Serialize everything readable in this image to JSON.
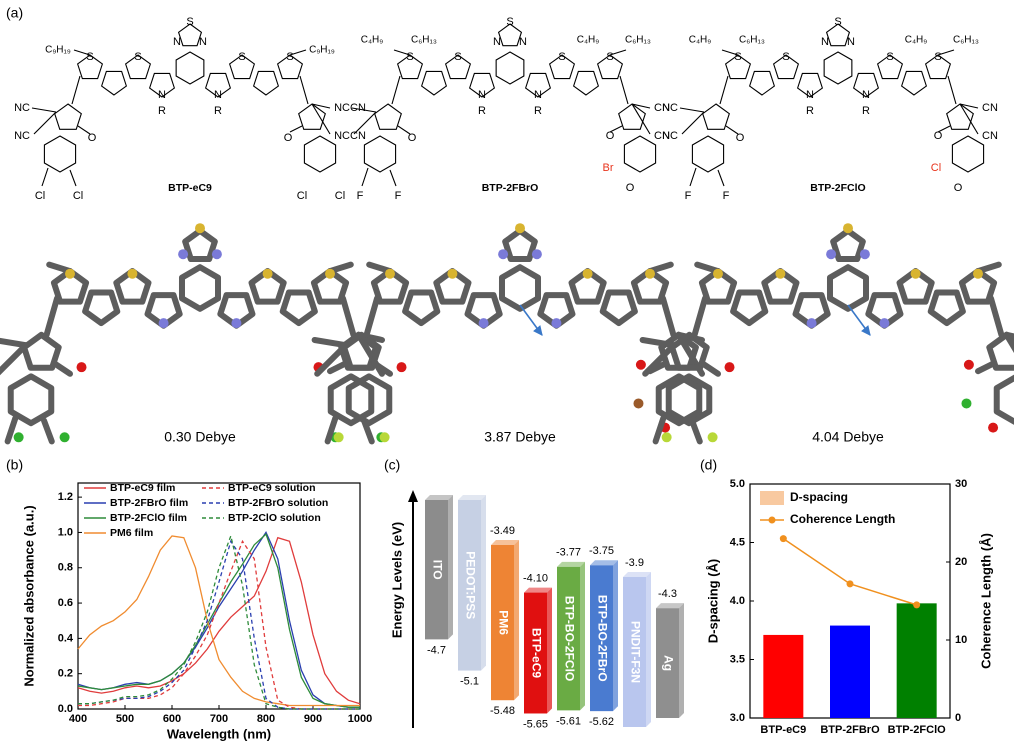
{
  "panel_a": {
    "label": "(a)",
    "molecules": [
      {
        "name": "BTP-eC9",
        "core": [
          "S",
          "N",
          "N",
          "S",
          "S",
          "S",
          "S",
          "N",
          "N",
          "R",
          "R"
        ],
        "side_chains": [
          "C₉H₁₉",
          "C₉H₁₉"
        ],
        "left_end": [
          "NC",
          "NC",
          "O",
          "Cl",
          "Cl"
        ],
        "right_end": [
          "CN",
          "CN",
          "O",
          "Cl",
          "Cl"
        ],
        "dipole": "0.30 Debye"
      },
      {
        "name": "BTP-2FBrO",
        "core": [
          "S",
          "N",
          "N",
          "S",
          "S",
          "S",
          "S",
          "N",
          "N",
          "R",
          "R"
        ],
        "side_chains": [
          "C₄H₉",
          "C₆H₁₃",
          "C₄H₉",
          "C₆H₁₃"
        ],
        "left_end": [
          "NC",
          "NC",
          "O",
          "F",
          "F"
        ],
        "right_end": [
          "CN",
          "CN",
          "O",
          "Br",
          "O"
        ],
        "highlight_color": "#e8341c",
        "dipole": "3.87 Debye"
      },
      {
        "name": "BTP-2FClO",
        "core": [
          "S",
          "N",
          "N",
          "S",
          "S",
          "S",
          "S",
          "N",
          "N",
          "R",
          "R"
        ],
        "side_chains": [
          "C₄H₉",
          "C₆H₁₃",
          "C₄H₉",
          "C₆H₁₃"
        ],
        "left_end": [
          "NC",
          "NC",
          "O",
          "F",
          "F"
        ],
        "right_end": [
          "CN",
          "CN",
          "O",
          "Cl",
          "O"
        ],
        "highlight_color": "#e8341c",
        "dipole": "4.04 Debye"
      }
    ]
  },
  "chart_data": [
    {
      "type": "line",
      "label": "(b)",
      "xlabel": "Wavelength (nm)",
      "ylabel": "Normalized absorbance (a.u.)",
      "x": [
        400,
        425,
        450,
        475,
        500,
        525,
        550,
        575,
        600,
        625,
        650,
        675,
        700,
        725,
        750,
        775,
        800,
        825,
        850,
        875,
        900,
        925,
        950,
        975,
        1000
      ],
      "xlim": [
        400,
        1000
      ],
      "xticks": [
        400,
        500,
        600,
        700,
        800,
        900,
        1000
      ],
      "ylim": [
        0,
        1.28
      ],
      "yticks": [
        {
          "value": 0,
          "label": "0.0"
        },
        0.2,
        0.4,
        0.6,
        0.8,
        {
          "value": 1,
          "label": "1.0"
        },
        1.2
      ],
      "series": [
        {
          "name": "BTP-eC9   film",
          "color": "#e03c3c",
          "dashed": false,
          "values": [
            0.12,
            0.1,
            0.09,
            0.1,
            0.12,
            0.13,
            0.12,
            0.13,
            0.16,
            0.2,
            0.26,
            0.34,
            0.44,
            0.52,
            0.58,
            0.64,
            0.78,
            0.97,
            0.95,
            0.72,
            0.42,
            0.2,
            0.1,
            0.05,
            0.03
          ]
        },
        {
          "name": "BTP-2FBrO film",
          "color": "#2a3fb0",
          "dashed": false,
          "values": [
            0.14,
            0.12,
            0.11,
            0.12,
            0.14,
            0.15,
            0.14,
            0.16,
            0.2,
            0.26,
            0.35,
            0.46,
            0.58,
            0.68,
            0.78,
            0.9,
            1.0,
            0.85,
            0.5,
            0.22,
            0.08,
            0.03,
            0.02,
            0.01,
            0.01
          ]
        },
        {
          "name": "BTP-2FClO film",
          "color": "#2e8b3a",
          "dashed": false,
          "values": [
            0.13,
            0.12,
            0.11,
            0.12,
            0.13,
            0.14,
            0.14,
            0.16,
            0.2,
            0.26,
            0.36,
            0.48,
            0.6,
            0.72,
            0.82,
            0.93,
            0.99,
            0.8,
            0.45,
            0.18,
            0.06,
            0.03,
            0.02,
            0.01,
            0.01
          ]
        },
        {
          "name": "PM6 film",
          "color": "#f08c30",
          "dashed": false,
          "values": [
            0.34,
            0.42,
            0.47,
            0.5,
            0.55,
            0.62,
            0.75,
            0.9,
            0.98,
            0.97,
            0.8,
            0.5,
            0.28,
            0.18,
            0.1,
            0.06,
            0.04,
            0.03,
            0.02,
            0.02,
            0.02,
            0.02,
            0.02,
            0.02,
            0.02
          ]
        },
        {
          "name": "BTP-eC9   solution",
          "color": "#e03c3c",
          "dashed": true,
          "values": [
            0.02,
            0.02,
            0.03,
            0.04,
            0.06,
            0.06,
            0.06,
            0.08,
            0.12,
            0.2,
            0.3,
            0.42,
            0.6,
            0.78,
            0.95,
            0.85,
            0.35,
            0.05,
            0.01,
            0,
            0,
            0,
            0,
            0,
            0
          ]
        },
        {
          "name": "BTP-2FBrO solution",
          "color": "#2a3fb0",
          "dashed": true,
          "values": [
            0.03,
            0.03,
            0.04,
            0.05,
            0.06,
            0.06,
            0.07,
            0.1,
            0.15,
            0.22,
            0.35,
            0.5,
            0.72,
            0.95,
            0.85,
            0.4,
            0.06,
            0.01,
            0,
            0,
            0,
            0,
            0,
            0,
            0
          ]
        },
        {
          "name": "BTP-2ClO solution",
          "color": "#2e8b3a",
          "dashed": true,
          "values": [
            0.03,
            0.03,
            0.04,
            0.05,
            0.07,
            0.07,
            0.08,
            0.11,
            0.17,
            0.25,
            0.38,
            0.55,
            0.8,
            0.98,
            0.7,
            0.25,
            0.03,
            0.01,
            0,
            0,
            0,
            0,
            0,
            0,
            0
          ]
        }
      ]
    },
    {
      "type": "energy_level",
      "label": "(c)",
      "ylabel": "Energy Levels (eV)",
      "categories": [
        "ITO",
        "PEDOT:PSS",
        "PM6",
        "BTP-eC9",
        "BTP-BO-2FClO",
        "BTP-BO-2FBrO",
        "PNDIT-F3N",
        "Ag"
      ],
      "colors": [
        "#8c8c8c",
        "#c6d0e4",
        "#ee8434",
        "#e01010",
        "#6aab44",
        "#4a7bd0",
        "#b9c6ee",
        "#8f8f8f"
      ],
      "series": [
        {
          "values": [
            null,
            null,
            -3.49,
            -4.1,
            -3.77,
            -3.75,
            -3.9,
            -4.3
          ],
          "value_labels": [
            null,
            null,
            "-3.49",
            "-4.10",
            "-3.77",
            "-3.75",
            "-3.9",
            "-4.3"
          ]
        },
        {
          "values": [
            -4.7,
            -5.1,
            -5.48,
            -5.65,
            -5.61,
            -5.62,
            null,
            null
          ]
        }
      ]
    },
    {
      "type": "bar_line",
      "label": "(d)",
      "categories": [
        "BTP-eC9",
        "BTP-2FBrO",
        "BTP-2FClO"
      ],
      "ylabel": "D-spacing (Å)",
      "y2label": "Coherence Length (Å)",
      "ylim": [
        3,
        5
      ],
      "yticks": [
        {
          "value": 3,
          "label": "3.0"
        },
        3.5,
        {
          "value": 4,
          "label": "4.0"
        },
        4.5,
        {
          "value": 5,
          "label": "5.0"
        }
      ],
      "y2lim": [
        0,
        30
      ],
      "y2ticks": [
        0,
        10,
        20,
        30
      ],
      "series": [
        {
          "name": "D-spacing",
          "type": "bar",
          "color": "#f8c9a0",
          "colors": [
            "#ff0000",
            "#0000ff",
            "#008000"
          ],
          "values": [
            3.71,
            3.79,
            3.98
          ]
        },
        {
          "name": "Coherence Length",
          "type": "line",
          "axis": "y2",
          "color": "#f0901e",
          "values": [
            23.0,
            17.2,
            14.5
          ]
        }
      ]
    }
  ]
}
